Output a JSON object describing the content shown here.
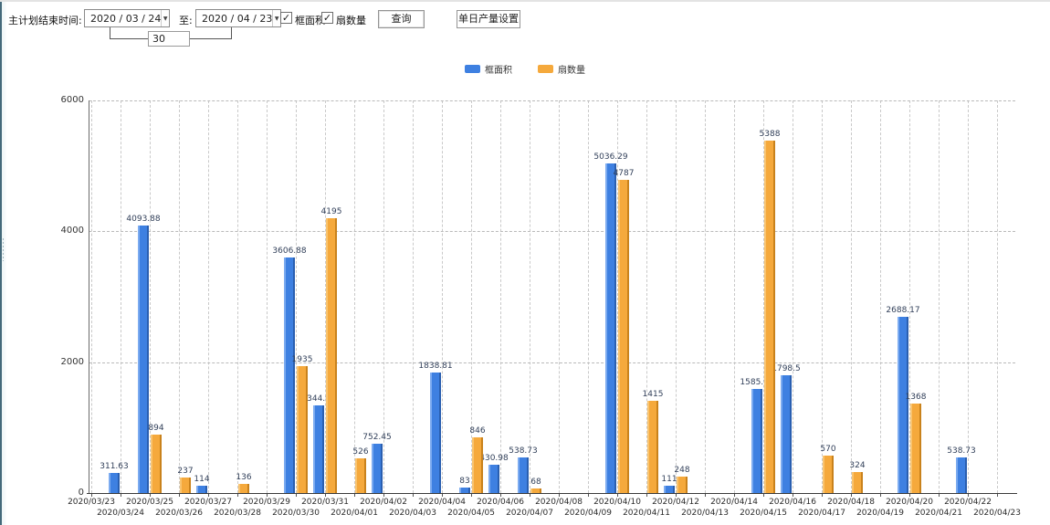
{
  "toolbar": {
    "label": "主计划结束时间:",
    "date_from": "2020 / 03 / 24",
    "to_label": "至:",
    "date_to": "2020 / 04 / 23",
    "days_between": "30",
    "checkbox_area_label": "框面积",
    "checkbox_fan_label": "扇数量",
    "query_button": "查询",
    "daily_output_button": "单日产量设置"
  },
  "icons": {
    "dropdown": "▼",
    "check": "✓"
  },
  "legend": [
    {
      "label": "框面积",
      "color": "#3e80e1"
    },
    {
      "label": "扇数量",
      "color": "#f5a93c"
    }
  ],
  "colors": {
    "blue": "#3e80e1",
    "orange": "#f5a93c",
    "grid": "#c9c9c9",
    "axis": "#3a3a3a"
  },
  "chart_data": {
    "type": "bar",
    "title": "",
    "xlabel": "",
    "ylabel": "",
    "ylim": [
      0,
      6000
    ],
    "yticks": [
      0,
      2000,
      4000,
      6000
    ],
    "grid": true,
    "legend_position": "top",
    "categories": [
      "2020/03/23",
      "2020/03/24",
      "2020/03/25",
      "2020/03/26",
      "2020/03/27",
      "2020/03/28",
      "2020/03/29",
      "2020/03/30",
      "2020/03/31",
      "2020/04/01",
      "2020/04/02",
      "2020/04/03",
      "2020/04/04",
      "2020/04/05",
      "2020/04/06",
      "2020/04/07",
      "2020/04/08",
      "2020/04/09",
      "2020/04/10",
      "2020/04/11",
      "2020/04/12",
      "2020/04/13",
      "2020/04/14",
      "2020/04/15",
      "2020/04/16",
      "2020/04/17",
      "2020/04/18",
      "2020/04/19",
      "2020/04/20",
      "2020/04/21",
      "2020/04/22",
      "2020/04/23"
    ],
    "series": [
      {
        "name": "框面积",
        "color": "#3e80e1",
        "values": [
          null,
          311.63,
          4093.88,
          null,
          114,
          null,
          null,
          3606.88,
          1344.95,
          null,
          752.45,
          null,
          1838.81,
          83,
          430.98,
          538.73,
          null,
          null,
          5036.29,
          null,
          111,
          null,
          null,
          1585.96,
          1798.5,
          null,
          null,
          null,
          2688.17,
          null,
          538.73,
          null
        ]
      },
      {
        "name": "扇数量",
        "color": "#f5a93c",
        "values": [
          null,
          null,
          894,
          237,
          null,
          136,
          null,
          1935,
          4195,
          526,
          null,
          null,
          null,
          846,
          null,
          68,
          null,
          null,
          4787,
          1415,
          248,
          null,
          null,
          5388,
          null,
          570,
          324,
          null,
          1368,
          null,
          null,
          null
        ]
      }
    ]
  }
}
